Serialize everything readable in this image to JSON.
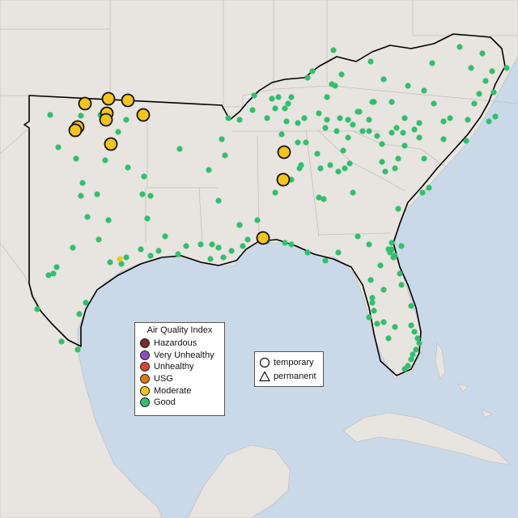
{
  "legend": {
    "title": "Air Quality Index",
    "categories": [
      {
        "label": "Hazardous",
        "color": "#7e2a2a"
      },
      {
        "label": "Very Unhealthy",
        "color": "#8e4ec6"
      },
      {
        "label": "Unhealthy",
        "color": "#e04431"
      },
      {
        "label": "USG",
        "color": "#e2780f"
      },
      {
        "label": "Moderate",
        "color": "#f5c516"
      },
      {
        "label": "Good",
        "color": "#2fc06e"
      }
    ]
  },
  "monitor_types": {
    "temporary": "temporary",
    "permanent": "permanent"
  },
  "colors": {
    "water": "#c9d9e8",
    "land": "#e8e4e0",
    "region_outline": "#000000"
  },
  "icons": [
    "circle-icon",
    "triangle-icon"
  ]
}
